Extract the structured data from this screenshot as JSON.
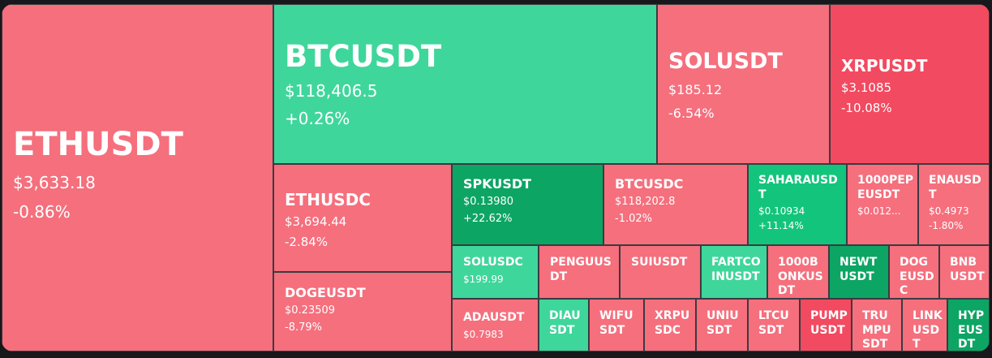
{
  "heatmap": {
    "tiles": [
      {
        "symbol": "ETHUSDT",
        "price": "$3,633.18",
        "change": "-0.86%"
      },
      {
        "symbol": "BTCUSDT",
        "price": "$118,406.5",
        "change": "+0.26%"
      },
      {
        "symbol": "SOLUSDT",
        "price": "$185.12",
        "change": "-6.54%"
      },
      {
        "symbol": "XRPUSDT",
        "price": "$3.1085",
        "change": "-10.08%"
      },
      {
        "symbol": "ETHUSDC",
        "price": "$3,694.44",
        "change": "-2.84%"
      },
      {
        "symbol": "SPKUSDT",
        "price": "$0.13980",
        "change": "+22.62%"
      },
      {
        "symbol": "BTCUSDC",
        "price": "$118,202.8",
        "change": "-1.02%"
      },
      {
        "symbol": "SAHARAUSDT",
        "price": "$0.10934",
        "change": "+11.14%"
      },
      {
        "symbol": "1000PEPEUSDT",
        "price": "$0.012...",
        "change": ""
      },
      {
        "symbol": "ENAUSDT",
        "price": "$0.4973",
        "change": "-1.80%"
      },
      {
        "symbol": "DOGEUSDT",
        "price": "$0.23509",
        "change": "-8.79%"
      },
      {
        "symbol": "SOLUSDC",
        "price": "$199.99",
        "change": ""
      },
      {
        "symbol": "PENGUUSDT",
        "price": "",
        "change": ""
      },
      {
        "symbol": "SUIUSDT",
        "price": "",
        "change": ""
      },
      {
        "symbol": "FARTCOINUSDT",
        "price": "",
        "change": ""
      },
      {
        "symbol": "1000BONKUSDT",
        "price": "",
        "change": ""
      },
      {
        "symbol": "NEWTUSDT",
        "price": "",
        "change": ""
      },
      {
        "symbol": "DOGEUSDC",
        "price": "",
        "change": ""
      },
      {
        "symbol": "BNBUSDT",
        "price": "",
        "change": ""
      },
      {
        "symbol": "ADAUSDT",
        "price": "$0.7983",
        "change": ""
      },
      {
        "symbol": "DIAUSDT",
        "price": "",
        "change": ""
      },
      {
        "symbol": "WIFUSDT",
        "price": "",
        "change": ""
      },
      {
        "symbol": "XRPUSDC",
        "price": "",
        "change": ""
      },
      {
        "symbol": "UNIUSDT",
        "price": "",
        "change": ""
      },
      {
        "symbol": "LTCUSDT",
        "price": "",
        "change": ""
      },
      {
        "symbol": "PUMPUSDT",
        "price": "",
        "change": ""
      },
      {
        "symbol": "TRUMPUSDT",
        "price": "",
        "change": ""
      },
      {
        "symbol": "LINKUSDT",
        "price": "",
        "change": ""
      },
      {
        "symbol": "HYPEUSDT",
        "price": "",
        "change": ""
      }
    ]
  }
}
